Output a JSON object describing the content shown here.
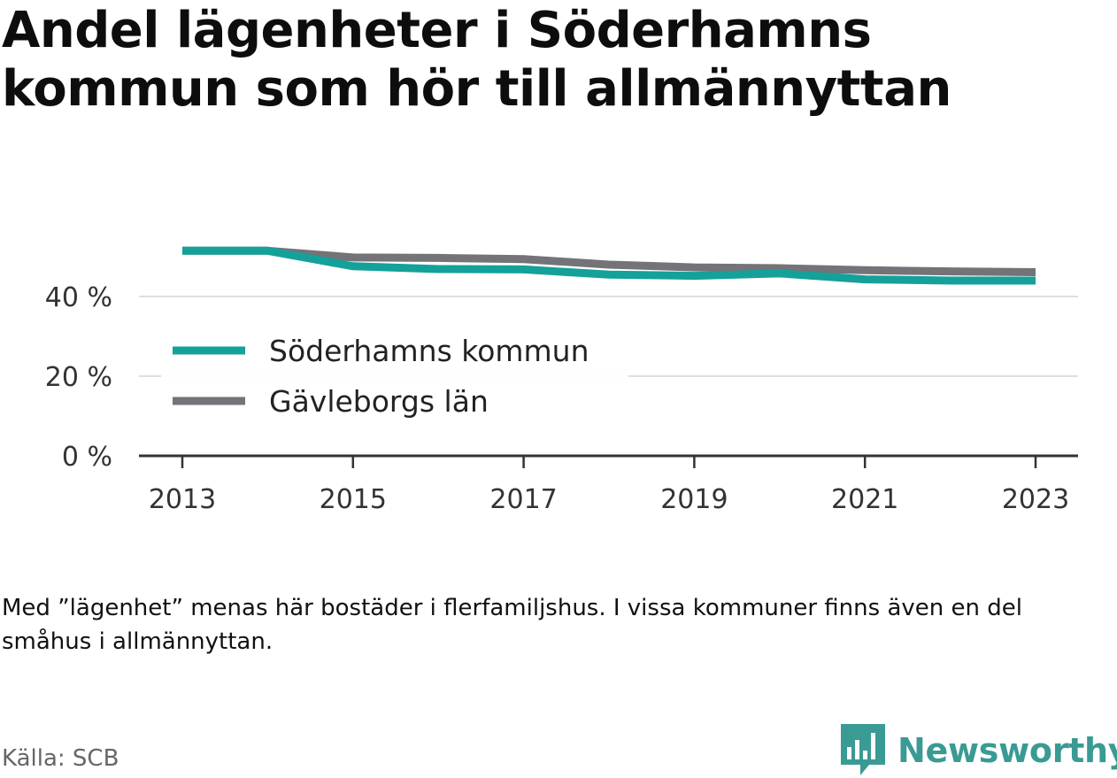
{
  "title": "Andel lägenheter i Söderhamns kommun som hör till allmännyttan",
  "note": "Med ”lägenhet” menas här bostäder i flerfamiljshus. I vissa kommuner finns även en del småhus i allmännyttan.",
  "source": "Källa: SCB",
  "brand": {
    "name": "Newsworthy",
    "icon": "bar-chart-speech-bubble-icon",
    "color": "#3a9a94"
  },
  "chart_data": {
    "type": "line",
    "title": "Andel lägenheter i Söderhamns kommun som hör till allmännyttan",
    "xlabel": "",
    "ylabel": "",
    "x": [
      2013,
      2014,
      2015,
      2016,
      2017,
      2018,
      2019,
      2020,
      2021,
      2022,
      2023
    ],
    "x_ticks": [
      "2013",
      "2015",
      "2017",
      "2019",
      "2021",
      "2023"
    ],
    "y_ticks": [
      "0 %",
      "20 %",
      "40 %"
    ],
    "y_tick_values": [
      0,
      20,
      40
    ],
    "ylim": [
      0,
      53
    ],
    "grid": true,
    "legend_position": "center-left",
    "series": [
      {
        "name": "Söderhamns kommun",
        "color": "#14a199",
        "values": [
          51.5,
          51.5,
          47.6,
          46.9,
          46.8,
          45.5,
          45.2,
          45.8,
          44.3,
          44.0,
          44.0
        ]
      },
      {
        "name": "Gävleborgs län",
        "color": "#737378",
        "values": [
          51.5,
          51.5,
          49.8,
          49.7,
          49.4,
          48.0,
          47.3,
          47.1,
          46.6,
          46.3,
          46.1
        ]
      }
    ]
  }
}
